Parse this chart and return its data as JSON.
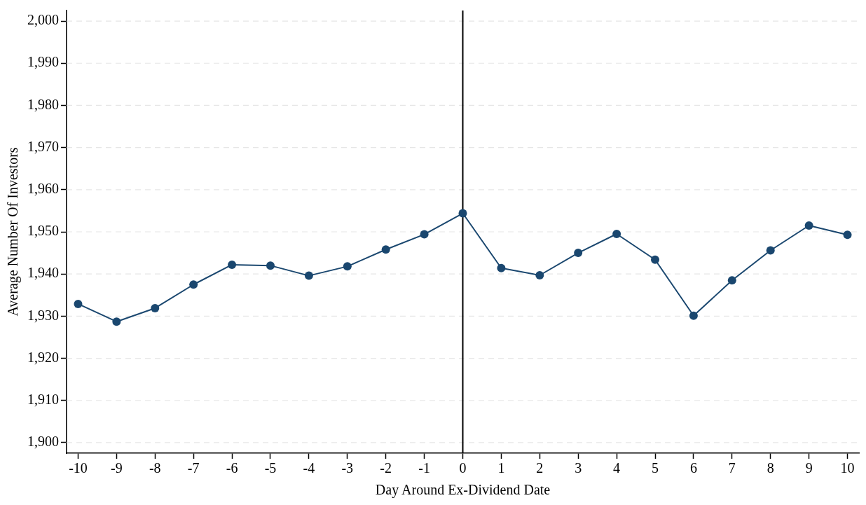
{
  "chart_data": {
    "type": "line",
    "xlabel": "Day Around Ex-Dividend Date",
    "ylabel": "Average Number Of Investors",
    "x": [
      -10,
      -9,
      -8,
      -7,
      -6,
      -5,
      -4,
      -3,
      -2,
      -1,
      0,
      1,
      2,
      3,
      4,
      5,
      6,
      7,
      8,
      9,
      10
    ],
    "series": [
      {
        "color": "#1a476f",
        "values": [
          1932.9,
          1928.7,
          1931.9,
          1937.5,
          1942.2,
          1942.0,
          1939.6,
          1941.8,
          1945.8,
          1949.4,
          1954.4,
          1941.4,
          1939.7,
          1945.0,
          1949.5,
          1943.4,
          1930.1,
          1938.5,
          1945.6,
          1951.5,
          1949.3
        ]
      }
    ],
    "xlim": [
      -10.3,
      10.3
    ],
    "xticks": [
      -10,
      -9,
      -8,
      -7,
      -6,
      -5,
      -4,
      -3,
      -2,
      -1,
      0,
      1,
      2,
      3,
      4,
      5,
      6,
      7,
      8,
      9,
      10
    ],
    "ylim": [
      1897.5,
      2002.5
    ],
    "yticks": [
      {
        "value": 1900,
        "label": "1,900"
      },
      {
        "value": 1910,
        "label": "1,910"
      },
      {
        "value": 1920,
        "label": "1,920"
      },
      {
        "value": 1930,
        "label": "1,930"
      },
      {
        "value": 1940,
        "label": "1,940"
      },
      {
        "value": 1950,
        "label": "1,950"
      },
      {
        "value": 1960,
        "label": "1,960"
      },
      {
        "value": 1970,
        "label": "1,970"
      },
      {
        "value": 1980,
        "label": "1,980"
      },
      {
        "value": 1990,
        "label": "1,990"
      },
      {
        "value": 2000,
        "label": "2,000"
      }
    ],
    "ref_lines": [
      {
        "axis": "x",
        "value": 0,
        "color": "#000000"
      }
    ],
    "grid": "y",
    "legend": false,
    "marker": "circle",
    "line_style": "solid"
  }
}
